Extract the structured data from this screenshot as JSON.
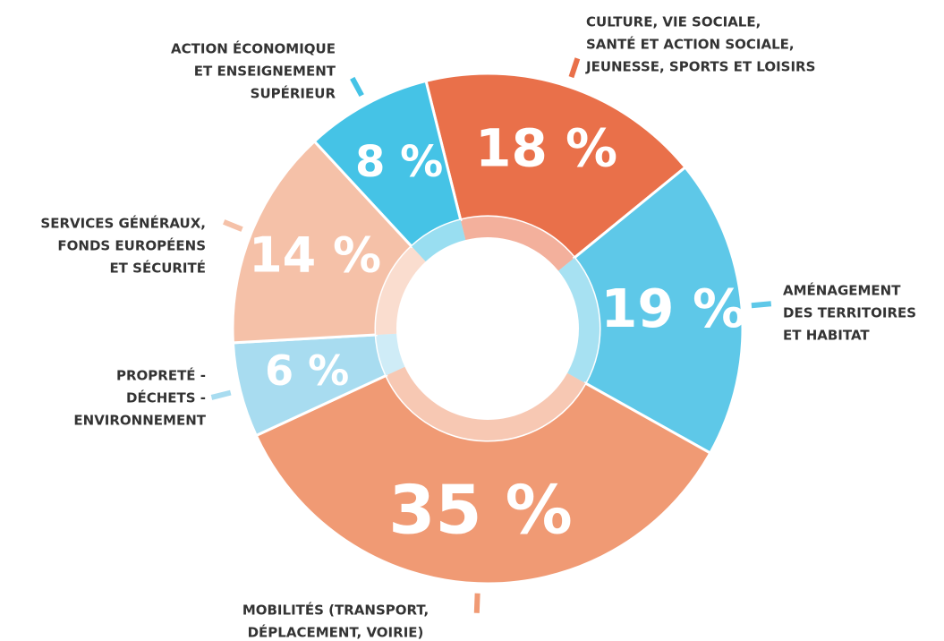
{
  "chart_data": {
    "type": "donut",
    "categories": [
      [
        "CULTURE, VIE SOCIALE,",
        "SANTÉ ET ACTION SOCIALE,",
        "JEUNESSE, SPORTS ET LOISIRS"
      ],
      [
        "AMÉNAGEMENT",
        "DES TERRITOIRES",
        "ET HABITAT"
      ],
      [
        "MOBILITÉS (TRANSPORT,",
        "DÉPLACEMENT, VOIRIE)"
      ],
      [
        "PROPRETÉ -",
        "DÉCHETS -",
        "ENVIRONNEMENT"
      ],
      [
        "SERVICES GÉNÉRAUX,",
        "FONDS EUROPÉENS",
        "ET SÉCURITÉ"
      ],
      [
        "ACTION ÉCONOMIQUE",
        "ET ENSEIGNEMENT",
        "SUPÉRIEUR"
      ]
    ],
    "values": [
      18,
      19,
      35,
      6,
      14,
      8
    ],
    "value_labels": [
      "18 %",
      "19 %",
      "35 %",
      "6 %",
      "14 %",
      "8 %"
    ],
    "colors": [
      "#e9704a",
      "#5ec8e8",
      "#f09a74",
      "#a8dcf0",
      "#f5c1a8",
      "#45c3e6"
    ]
  }
}
